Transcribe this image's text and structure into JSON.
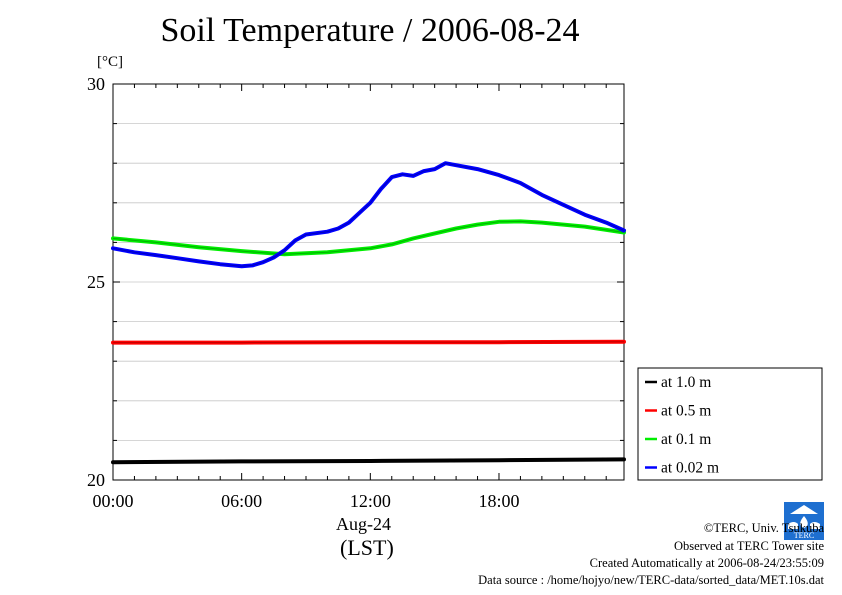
{
  "chart_data": {
    "type": "line",
    "title": "Soil Temperature / 2006-08-24",
    "ylabel": "[°C]",
    "xlabel_date": "Aug-24",
    "xlabel_tz": "(LST)",
    "xlim": [
      0,
      23.83
    ],
    "ylim": [
      20,
      30
    ],
    "yticks": [
      20,
      25,
      30
    ],
    "xticks": [
      {
        "v": 0,
        "label": "00:00"
      },
      {
        "v": 6,
        "label": "06:00"
      },
      {
        "v": 12,
        "label": "12:00"
      },
      {
        "v": 18,
        "label": "18:00"
      }
    ],
    "grid": true,
    "legend_position": "right",
    "series": [
      {
        "name": "at 1.0 m",
        "color": "#000000",
        "points": [
          [
            0,
            20.45
          ],
          [
            6,
            20.47
          ],
          [
            12,
            20.48
          ],
          [
            18,
            20.5
          ],
          [
            23.83,
            20.52
          ]
        ]
      },
      {
        "name": "at 0.5 m",
        "color": "#ff0000",
        "points": [
          [
            0,
            23.47
          ],
          [
            6,
            23.47
          ],
          [
            12,
            23.48
          ],
          [
            18,
            23.48
          ],
          [
            23.83,
            23.49
          ]
        ]
      },
      {
        "name": "at 0.1 m",
        "color": "#00ee00",
        "points": [
          [
            0,
            26.1
          ],
          [
            2,
            26
          ],
          [
            4,
            25.88
          ],
          [
            6,
            25.78
          ],
          [
            8,
            25.7
          ],
          [
            10,
            25.75
          ],
          [
            12,
            25.85
          ],
          [
            13,
            25.95
          ],
          [
            14,
            26.1
          ],
          [
            16,
            26.35
          ],
          [
            17,
            26.45
          ],
          [
            18,
            26.52
          ],
          [
            19,
            26.53
          ],
          [
            20,
            26.5
          ],
          [
            22,
            26.4
          ],
          [
            23.83,
            26.25
          ]
        ]
      },
      {
        "name": "at 0.02 m",
        "color": "#0000ff",
        "points": [
          [
            0,
            25.85
          ],
          [
            1,
            25.75
          ],
          [
            2,
            25.68
          ],
          [
            3,
            25.6
          ],
          [
            4,
            25.52
          ],
          [
            5,
            25.45
          ],
          [
            6,
            25.4
          ],
          [
            6.5,
            25.42
          ],
          [
            7,
            25.5
          ],
          [
            7.5,
            25.62
          ],
          [
            8,
            25.8
          ],
          [
            8.5,
            26.05
          ],
          [
            9,
            26.2
          ],
          [
            10,
            26.27
          ],
          [
            10.5,
            26.35
          ],
          [
            11,
            26.5
          ],
          [
            11.5,
            26.75
          ],
          [
            12,
            27
          ],
          [
            12.5,
            27.35
          ],
          [
            13,
            27.65
          ],
          [
            13.5,
            27.72
          ],
          [
            14,
            27.68
          ],
          [
            14.5,
            27.8
          ],
          [
            15,
            27.85
          ],
          [
            15.5,
            28
          ],
          [
            16,
            27.95
          ],
          [
            17,
            27.85
          ],
          [
            18,
            27.7
          ],
          [
            19,
            27.5
          ],
          [
            20,
            27.2
          ],
          [
            21,
            26.95
          ],
          [
            22,
            26.7
          ],
          [
            23,
            26.5
          ],
          [
            23.83,
            26.3
          ]
        ]
      }
    ]
  },
  "footer": {
    "copyright": "©TERC, Univ. Tsukuba",
    "observed": "Observed at TERC Tower site",
    "created": "Created Automatically at 2006-08-24/23:55:09",
    "source": "Data source : /home/hojyo/new/TERC-data/sorted_data/MET.10s.dat"
  },
  "logo_text": "TERC"
}
